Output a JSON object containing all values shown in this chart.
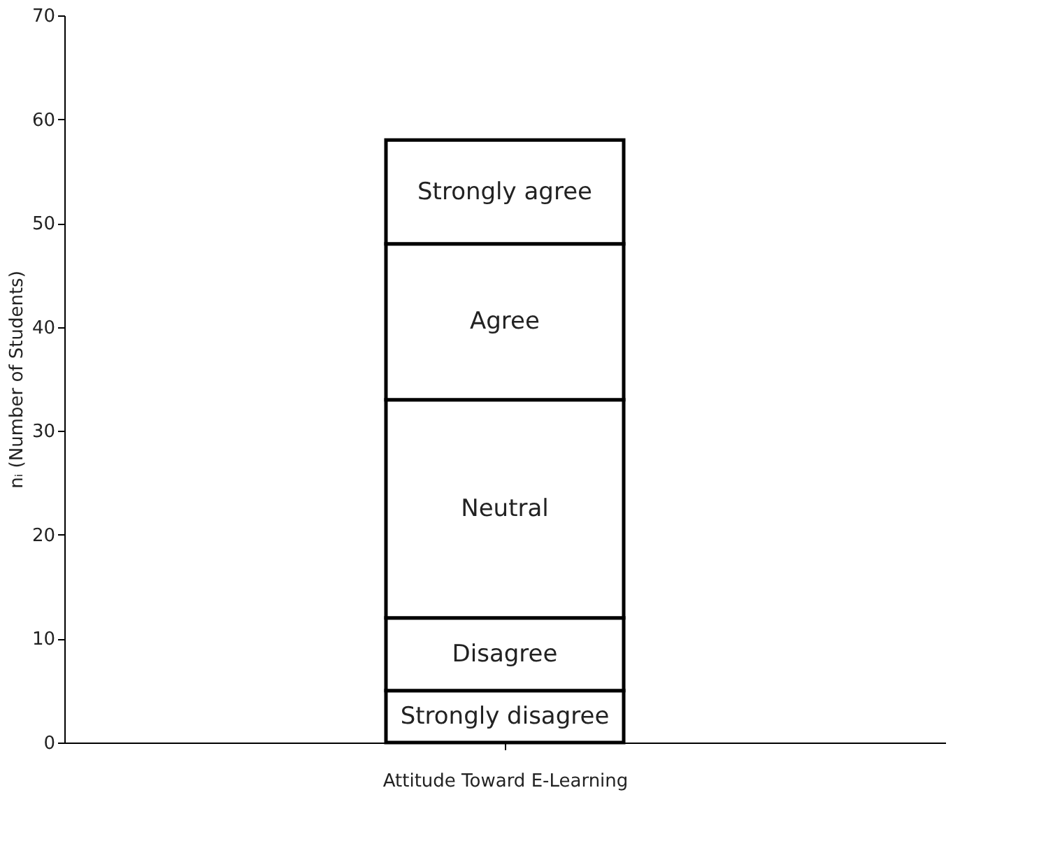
{
  "chart_data": {
    "type": "bar",
    "stacked": true,
    "xlabel": "Attitude Toward E-Learning",
    "ylabel": "nᵢ (Number of Students)",
    "categories": [
      null
    ],
    "series": [
      {
        "name": "Strongly disagree",
        "color": "#ffffff",
        "values": [
          5
        ]
      },
      {
        "name": "Disagree",
        "color": "#ffffff",
        "values": [
          7
        ]
      },
      {
        "name": "Neutral",
        "color": "#ffffff",
        "values": [
          21
        ]
      },
      {
        "name": "Agree",
        "color": "#ffffff",
        "values": [
          15
        ]
      },
      {
        "name": "Strongly agree",
        "color": "#ffffff",
        "values": [
          10
        ]
      }
    ],
    "ylim": [
      0,
      70
    ],
    "yticks": [
      0,
      10,
      20,
      30,
      40,
      50,
      60,
      70
    ],
    "grid": false
  }
}
